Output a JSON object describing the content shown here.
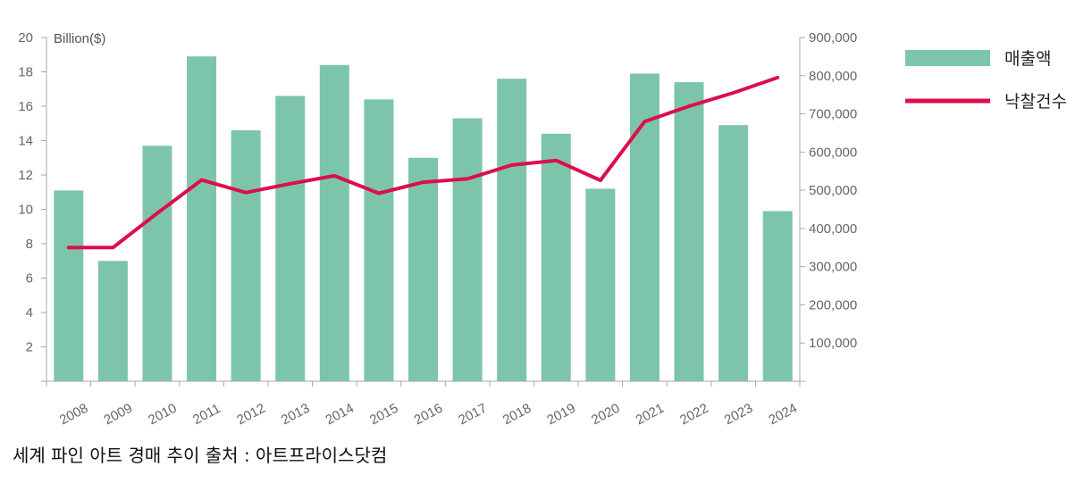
{
  "caption": "세계 파인 아트 경매 추이 출처 : 아트프라이스닷컴",
  "colors": {
    "bar": "#7dc5aa",
    "line": "#dc0f4b",
    "axis": "#a8a8a8",
    "tick_text": "#666666"
  },
  "chart_data": {
    "type": "bar",
    "categories": [
      "2008",
      "2009",
      "2010",
      "2011",
      "2012",
      "2013",
      "2014",
      "2015",
      "2016",
      "2017",
      "2018",
      "2019",
      "2020",
      "2021",
      "2022",
      "2023",
      "2024"
    ],
    "series": [
      {
        "name": "매출액",
        "type": "bar",
        "axis": "left",
        "values": [
          11.1,
          7.0,
          13.7,
          18.9,
          14.6,
          16.6,
          18.4,
          16.4,
          13.0,
          15.3,
          17.6,
          14.4,
          11.2,
          17.9,
          17.4,
          14.9,
          9.9
        ]
      },
      {
        "name": "낙찰건수",
        "type": "line",
        "axis": "right",
        "values": [
          350000,
          350000,
          440000,
          527000,
          494000,
          517000,
          538000,
          492000,
          521000,
          530000,
          566000,
          578000,
          526000,
          680000,
          720000,
          755000,
          795000
        ]
      }
    ],
    "y_left": {
      "unit_label": "Billion($)",
      "ylim": [
        0,
        20
      ],
      "ticks": [
        2,
        4,
        6,
        8,
        10,
        12,
        14,
        16,
        18,
        20
      ],
      "tick_labels": [
        "2",
        "4",
        "6",
        "8",
        "10",
        "12",
        "14",
        "16",
        "18",
        "20"
      ]
    },
    "y_right": {
      "ylim": [
        0,
        900000
      ],
      "ticks": [
        100000,
        200000,
        300000,
        400000,
        500000,
        600000,
        700000,
        800000,
        900000
      ],
      "tick_labels": [
        "100,000",
        "200,000",
        "300,000",
        "400,000",
        "500,000",
        "600,000",
        "700,000",
        "800,000",
        "900,000"
      ]
    },
    "grid": false,
    "legend_position": "top-right"
  }
}
